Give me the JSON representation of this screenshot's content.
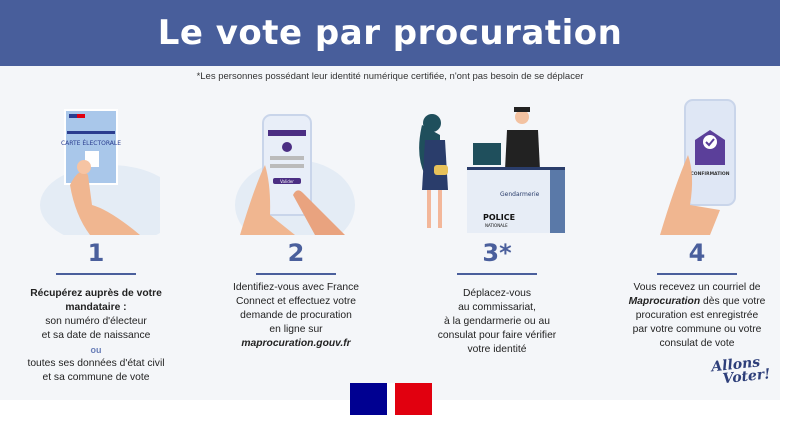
{
  "header": {
    "title": "Le vote par procuration"
  },
  "footnote": "*Les personnes possédant leur identité numérique certifiée, n'ont pas besoin de se déplacer",
  "steps": [
    {
      "number": "1",
      "title": "Récupérez auprès de votre mandataire :",
      "lines": [
        "son numéro d'électeur",
        "et sa date de naissance"
      ],
      "or": "ou",
      "lines2": [
        "toutes ses données d'état civil",
        "et sa commune de vote"
      ],
      "illustration": "hand-holding-voter-card",
      "card_label": "CARTE ÉLECTORALE"
    },
    {
      "number": "2",
      "lines": [
        "Identifiez-vous avec France",
        "Connect et effectuez votre",
        "demande de procuration",
        "en ligne sur"
      ],
      "link": "maprocuration.gouv.fr",
      "illustration": "hand-holding-phone",
      "button_label": "Valider"
    },
    {
      "number": "3*",
      "lines": [
        "Déplacez-vous",
        "au commissariat,",
        "à la gendarmerie ou au",
        "consulat pour faire vérifier",
        "votre identité"
      ],
      "illustration": "police-desk",
      "desk_label_1": "Gendarmerie",
      "desk_label_2": "POLICE",
      "desk_label_3": "NATIONALE"
    },
    {
      "number": "4",
      "line1_pre": "Vous recevez un courriel de",
      "brand": "Maprocuration",
      "line2_post": " dès que votre",
      "lines": [
        "procuration est enregistrée",
        "par votre commune ou votre",
        "consulat de vote"
      ],
      "illustration": "phone-confirmation-envelope",
      "screen_label": "CONFIRMATION"
    }
  ],
  "slogan": [
    "Allons",
    "Voter!"
  ],
  "colors": {
    "header": "#485e9b",
    "accent": "#4a5f9c",
    "flag_blue": "#000091",
    "flag_red": "#e1000f"
  }
}
